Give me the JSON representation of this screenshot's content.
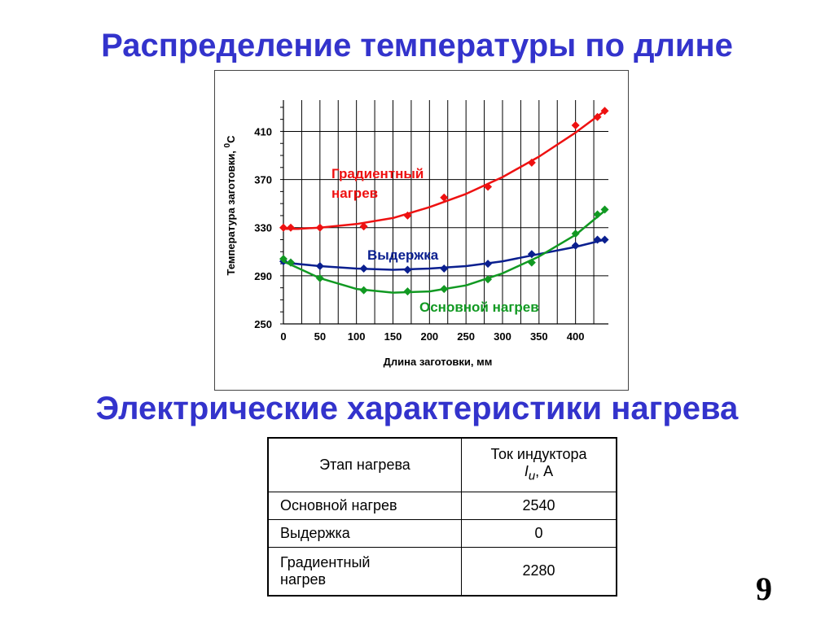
{
  "title_top": "Распределение температуры по длине",
  "title_bottom": "Электрические характеристики нагрева",
  "page_number": "9",
  "chart_data": {
    "type": "line",
    "xlabel": "Длина заготовки, мм",
    "ylabel": "Температура заготовки, ",
    "ylabel_sup": "0",
    "ylabel_unit": "C",
    "xlim": [
      0,
      445
    ],
    "ylim": [
      250,
      436
    ],
    "x_ticks": [
      0,
      50,
      100,
      150,
      200,
      250,
      300,
      350,
      400
    ],
    "y_ticks": [
      250,
      290,
      330,
      370,
      410
    ],
    "grid": true,
    "series": [
      {
        "name": "Градиентный нагрев",
        "name_lines": [
          "Градиентный",
          "нагрев"
        ],
        "color": "#ee1111",
        "points": [
          [
            0,
            330
          ],
          [
            10,
            330
          ],
          [
            50,
            330
          ],
          [
            110,
            331
          ],
          [
            170,
            340
          ],
          [
            220,
            355
          ],
          [
            280,
            364
          ],
          [
            340,
            384
          ],
          [
            400,
            415
          ],
          [
            430,
            422
          ],
          [
            440,
            427
          ]
        ],
        "curve": [
          [
            0,
            329
          ],
          [
            20,
            329
          ],
          [
            50,
            330
          ],
          [
            100,
            333
          ],
          [
            150,
            338
          ],
          [
            200,
            347
          ],
          [
            250,
            358
          ],
          [
            300,
            372
          ],
          [
            350,
            389
          ],
          [
            400,
            409
          ],
          [
            440,
            427
          ]
        ]
      },
      {
        "name": "Выдержка",
        "name_lines": [
          "Выдержка"
        ],
        "color": "#0a1f8f",
        "points": [
          [
            0,
            302
          ],
          [
            10,
            301
          ],
          [
            50,
            298
          ],
          [
            110,
            296
          ],
          [
            170,
            295
          ],
          [
            220,
            296
          ],
          [
            280,
            300
          ],
          [
            340,
            308
          ],
          [
            400,
            315
          ],
          [
            430,
            320
          ],
          [
            440,
            320
          ]
        ],
        "curve": [
          [
            0,
            301
          ],
          [
            50,
            298
          ],
          [
            100,
            296
          ],
          [
            150,
            295
          ],
          [
            200,
            296
          ],
          [
            250,
            298
          ],
          [
            300,
            302
          ],
          [
            350,
            308
          ],
          [
            400,
            314
          ],
          [
            440,
            320
          ]
        ]
      },
      {
        "name": "Основной нагрев",
        "name_lines": [
          "Основной нагрев"
        ],
        "color": "#119922",
        "points": [
          [
            0,
            304
          ],
          [
            10,
            301
          ],
          [
            50,
            288
          ],
          [
            110,
            278
          ],
          [
            170,
            277
          ],
          [
            220,
            279
          ],
          [
            280,
            287
          ],
          [
            340,
            301
          ],
          [
            400,
            325
          ],
          [
            430,
            341
          ],
          [
            440,
            345
          ]
        ],
        "curve": [
          [
            0,
            302
          ],
          [
            50,
            288
          ],
          [
            100,
            279
          ],
          [
            150,
            276
          ],
          [
            200,
            277
          ],
          [
            250,
            282
          ],
          [
            300,
            292
          ],
          [
            350,
            306
          ],
          [
            400,
            324
          ],
          [
            440,
            344
          ]
        ]
      }
    ]
  },
  "table": {
    "header_stage": "Этап нагрева",
    "header_current_line1": "Ток индуктора",
    "header_current_symbol": "I",
    "header_current_sub": "u",
    "header_current_unit": ", А",
    "rows": [
      {
        "stage": "Основной нагрев",
        "value": "2540"
      },
      {
        "stage": "Выдержка",
        "value": "0"
      },
      {
        "stage_line1": "Градиентный",
        "stage_line2": "нагрев",
        "value": "2280"
      }
    ]
  }
}
